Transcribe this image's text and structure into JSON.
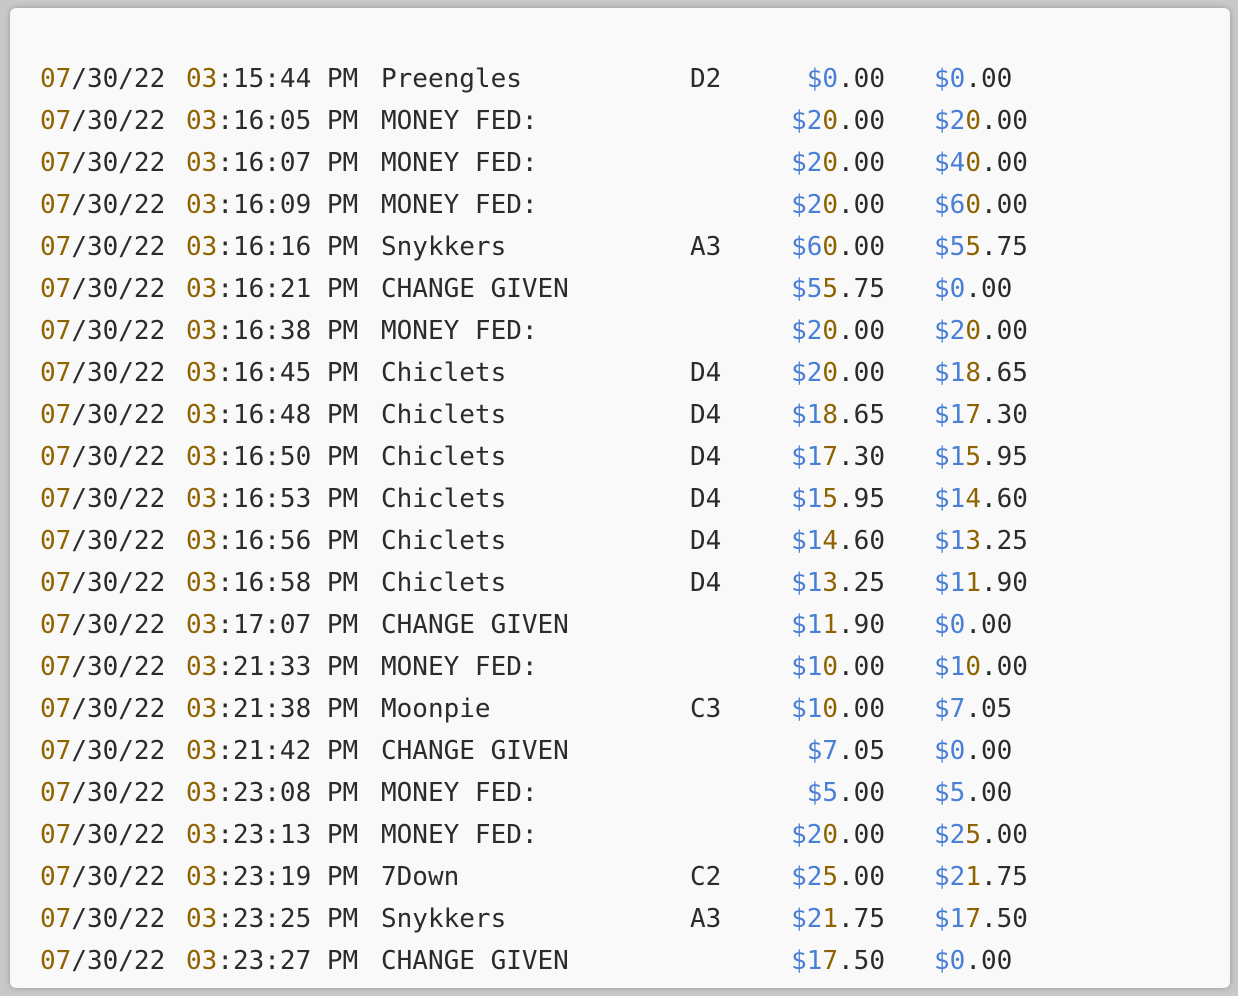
{
  "colors": {
    "text": "#2b2b2b",
    "date_highlight": "#8f6300",
    "currency_highlight": "#4a7fd6",
    "background": "#f9f9f9"
  },
  "log_rows": [
    {
      "date_mm": "07",
      "date_rest": "/30/22",
      "time_hh": "03",
      "time_rest": ":15:44 PM",
      "desc": "Preengles",
      "slot": "D2",
      "amount_sym": "$",
      "amount_int": "0",
      "amount_dec": ".00",
      "balance_sym": "$",
      "balance_int": "0",
      "balance_dec": ".00"
    },
    {
      "date_mm": "07",
      "date_rest": "/30/22",
      "time_hh": "03",
      "time_rest": ":16:05 PM",
      "desc": "MONEY FED:",
      "slot": "",
      "amount_sym": "$",
      "amount_int": "20",
      "amount_dec": ".00",
      "balance_sym": "$",
      "balance_int": "20",
      "balance_dec": ".00"
    },
    {
      "date_mm": "07",
      "date_rest": "/30/22",
      "time_hh": "03",
      "time_rest": ":16:07 PM",
      "desc": "MONEY FED:",
      "slot": "",
      "amount_sym": "$",
      "amount_int": "20",
      "amount_dec": ".00",
      "balance_sym": "$",
      "balance_int": "40",
      "balance_dec": ".00"
    },
    {
      "date_mm": "07",
      "date_rest": "/30/22",
      "time_hh": "03",
      "time_rest": ":16:09 PM",
      "desc": "MONEY FED:",
      "slot": "",
      "amount_sym": "$",
      "amount_int": "20",
      "amount_dec": ".00",
      "balance_sym": "$",
      "balance_int": "60",
      "balance_dec": ".00"
    },
    {
      "date_mm": "07",
      "date_rest": "/30/22",
      "time_hh": "03",
      "time_rest": ":16:16 PM",
      "desc": "Snykkers",
      "slot": "A3",
      "amount_sym": "$",
      "amount_int": "60",
      "amount_dec": ".00",
      "balance_sym": "$",
      "balance_int": "55",
      "balance_dec": ".75"
    },
    {
      "date_mm": "07",
      "date_rest": "/30/22",
      "time_hh": "03",
      "time_rest": ":16:21 PM",
      "desc": "CHANGE GIVEN",
      "slot": "",
      "amount_sym": "$",
      "amount_int": "55",
      "amount_dec": ".75",
      "balance_sym": "$",
      "balance_int": "0",
      "balance_dec": ".00"
    },
    {
      "date_mm": "07",
      "date_rest": "/30/22",
      "time_hh": "03",
      "time_rest": ":16:38 PM",
      "desc": "MONEY FED:",
      "slot": "",
      "amount_sym": "$",
      "amount_int": "20",
      "amount_dec": ".00",
      "balance_sym": "$",
      "balance_int": "20",
      "balance_dec": ".00"
    },
    {
      "date_mm": "07",
      "date_rest": "/30/22",
      "time_hh": "03",
      "time_rest": ":16:45 PM",
      "desc": "Chiclets",
      "slot": "D4",
      "amount_sym": "$",
      "amount_int": "20",
      "amount_dec": ".00",
      "balance_sym": "$",
      "balance_int": "18",
      "balance_dec": ".65"
    },
    {
      "date_mm": "07",
      "date_rest": "/30/22",
      "time_hh": "03",
      "time_rest": ":16:48 PM",
      "desc": "Chiclets",
      "slot": "D4",
      "amount_sym": "$",
      "amount_int": "18",
      "amount_dec": ".65",
      "balance_sym": "$",
      "balance_int": "17",
      "balance_dec": ".30"
    },
    {
      "date_mm": "07",
      "date_rest": "/30/22",
      "time_hh": "03",
      "time_rest": ":16:50 PM",
      "desc": "Chiclets",
      "slot": "D4",
      "amount_sym": "$",
      "amount_int": "17",
      "amount_dec": ".30",
      "balance_sym": "$",
      "balance_int": "15",
      "balance_dec": ".95"
    },
    {
      "date_mm": "07",
      "date_rest": "/30/22",
      "time_hh": "03",
      "time_rest": ":16:53 PM",
      "desc": "Chiclets",
      "slot": "D4",
      "amount_sym": "$",
      "amount_int": "15",
      "amount_dec": ".95",
      "balance_sym": "$",
      "balance_int": "14",
      "balance_dec": ".60"
    },
    {
      "date_mm": "07",
      "date_rest": "/30/22",
      "time_hh": "03",
      "time_rest": ":16:56 PM",
      "desc": "Chiclets",
      "slot": "D4",
      "amount_sym": "$",
      "amount_int": "14",
      "amount_dec": ".60",
      "balance_sym": "$",
      "balance_int": "13",
      "balance_dec": ".25"
    },
    {
      "date_mm": "07",
      "date_rest": "/30/22",
      "time_hh": "03",
      "time_rest": ":16:58 PM",
      "desc": "Chiclets",
      "slot": "D4",
      "amount_sym": "$",
      "amount_int": "13",
      "amount_dec": ".25",
      "balance_sym": "$",
      "balance_int": "11",
      "balance_dec": ".90"
    },
    {
      "date_mm": "07",
      "date_rest": "/30/22",
      "time_hh": "03",
      "time_rest": ":17:07 PM",
      "desc": "CHANGE GIVEN",
      "slot": "",
      "amount_sym": "$",
      "amount_int": "11",
      "amount_dec": ".90",
      "balance_sym": "$",
      "balance_int": "0",
      "balance_dec": ".00"
    },
    {
      "date_mm": "07",
      "date_rest": "/30/22",
      "time_hh": "03",
      "time_rest": ":21:33 PM",
      "desc": "MONEY FED:",
      "slot": "",
      "amount_sym": "$",
      "amount_int": "10",
      "amount_dec": ".00",
      "balance_sym": "$",
      "balance_int": "10",
      "balance_dec": ".00"
    },
    {
      "date_mm": "07",
      "date_rest": "/30/22",
      "time_hh": "03",
      "time_rest": ":21:38 PM",
      "desc": "Moonpie",
      "slot": "C3",
      "amount_sym": "$",
      "amount_int": "10",
      "amount_dec": ".00",
      "balance_sym": "$",
      "balance_int": "7",
      "balance_dec": ".05"
    },
    {
      "date_mm": "07",
      "date_rest": "/30/22",
      "time_hh": "03",
      "time_rest": ":21:42 PM",
      "desc": "CHANGE GIVEN",
      "slot": "",
      "amount_sym": "$",
      "amount_int": "7",
      "amount_dec": ".05",
      "balance_sym": "$",
      "balance_int": "0",
      "balance_dec": ".00"
    },
    {
      "date_mm": "07",
      "date_rest": "/30/22",
      "time_hh": "03",
      "time_rest": ":23:08 PM",
      "desc": "MONEY FED:",
      "slot": "",
      "amount_sym": "$",
      "amount_int": "5",
      "amount_dec": ".00",
      "balance_sym": "$",
      "balance_int": "5",
      "balance_dec": ".00"
    },
    {
      "date_mm": "07",
      "date_rest": "/30/22",
      "time_hh": "03",
      "time_rest": ":23:13 PM",
      "desc": "MONEY FED:",
      "slot": "",
      "amount_sym": "$",
      "amount_int": "20",
      "amount_dec": ".00",
      "balance_sym": "$",
      "balance_int": "25",
      "balance_dec": ".00"
    },
    {
      "date_mm": "07",
      "date_rest": "/30/22",
      "time_hh": "03",
      "time_rest": ":23:19 PM",
      "desc": "7Down",
      "slot": "C2",
      "amount_sym": "$",
      "amount_int": "25",
      "amount_dec": ".00",
      "balance_sym": "$",
      "balance_int": "21",
      "balance_dec": ".75"
    },
    {
      "date_mm": "07",
      "date_rest": "/30/22",
      "time_hh": "03",
      "time_rest": ":23:25 PM",
      "desc": "Snykkers",
      "slot": "A3",
      "amount_sym": "$",
      "amount_int": "21",
      "amount_dec": ".75",
      "balance_sym": "$",
      "balance_int": "17",
      "balance_dec": ".50"
    },
    {
      "date_mm": "07",
      "date_rest": "/30/22",
      "time_hh": "03",
      "time_rest": ":23:27 PM",
      "desc": "CHANGE GIVEN",
      "slot": "",
      "amount_sym": "$",
      "amount_int": "17",
      "amount_dec": ".50",
      "balance_sym": "$",
      "balance_int": "0",
      "balance_dec": ".00"
    }
  ]
}
